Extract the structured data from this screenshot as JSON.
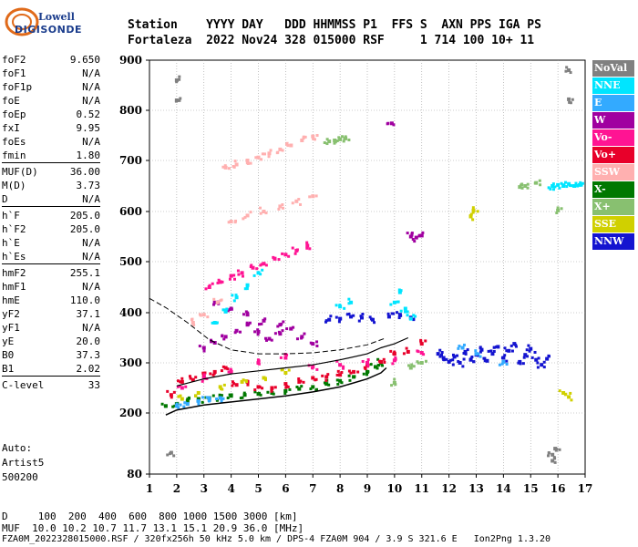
{
  "header": {
    "logo_top": "Lowell",
    "logo_bottom": "DIGISONDE",
    "line1": "Station    YYYY DAY   DDD HHMMSS P1  FFS S  AXN PPS IGA PS",
    "line2": "Fortaleza  2022 Nov24 328 015000 RSF     1 714 100 10+ 11"
  },
  "params_group1": [
    {
      "name": "foF2",
      "value": "9.650"
    },
    {
      "name": "foF1",
      "value": "N/A"
    },
    {
      "name": "foF1p",
      "value": "N/A"
    },
    {
      "name": "foE",
      "value": "N/A"
    },
    {
      "name": "foEp",
      "value": "0.52"
    },
    {
      "name": "fxI",
      "value": "9.95"
    },
    {
      "name": "foEs",
      "value": "N/A"
    },
    {
      "name": "fmin",
      "value": "1.80"
    }
  ],
  "params_group2": [
    {
      "name": "MUF(D)",
      "value": "36.00"
    },
    {
      "name": "M(D)",
      "value": "3.73"
    },
    {
      "name": "D",
      "value": "N/A"
    }
  ],
  "params_group3": [
    {
      "name": "h`F",
      "value": "205.0"
    },
    {
      "name": "h`F2",
      "value": "205.0"
    },
    {
      "name": "h`E",
      "value": "N/A"
    },
    {
      "name": "h`Es",
      "value": "N/A"
    }
  ],
  "params_group4": [
    {
      "name": "hmF2",
      "value": "255.1"
    },
    {
      "name": "hmF1",
      "value": "N/A"
    },
    {
      "name": "hmE",
      "value": "110.0"
    },
    {
      "name": "yF2",
      "value": "37.1"
    },
    {
      "name": "yF1",
      "value": "N/A"
    },
    {
      "name": "yE",
      "value": "20.0"
    },
    {
      "name": "B0",
      "value": "37.3"
    },
    {
      "name": "B1",
      "value": "2.02"
    }
  ],
  "params_group5": [
    {
      "name": "C-level",
      "value": "33"
    }
  ],
  "auto": {
    "line1": "Auto:",
    "line2": "Artist5",
    "line3": "500200"
  },
  "legend": [
    {
      "label": "NoVal",
      "color": "#808080"
    },
    {
      "label": "NNE",
      "color": "#00e5ff"
    },
    {
      "label": "E",
      "color": "#33aaff"
    },
    {
      "label": "W",
      "color": "#a000a0"
    },
    {
      "label": "Vo-",
      "color": "#ff1493"
    },
    {
      "label": "Vo+",
      "color": "#e8002a"
    },
    {
      "label": "SSW",
      "color": "#ffb0b0"
    },
    {
      "label": "X-",
      "color": "#007800"
    },
    {
      "label": "X+",
      "color": "#88c070"
    },
    {
      "label": "SSE",
      "color": "#d0d000"
    },
    {
      "label": "NNW",
      "color": "#1414d0"
    }
  ],
  "footer": {
    "line1": "D     100  200  400  600  800 1000 1500 3000 [km]",
    "line2": "MUF  10.0 10.2 10.7 11.7 13.1 15.1 20.9 36.0 [MHz]",
    "line3": "FZA0M_2022328015000.RSF / 320fx256h 50 kHz 5.0 km / DPS-4 FZA0M 904 / 3.9 S 321.6 E   Ion2Png 1.3.20"
  },
  "chart_data": {
    "type": "scatter",
    "title": "",
    "xlabel": "",
    "ylabel": "",
    "xlim": [
      1,
      17
    ],
    "ylim": [
      80,
      900
    ],
    "x_ticks": [
      "1",
      "2",
      "3",
      "4",
      "5",
      "6",
      "7",
      "8",
      "9",
      "10",
      "11",
      "12",
      "13",
      "14",
      "15",
      "16",
      "17"
    ],
    "y_ticks": [
      "80",
      "200",
      "300",
      "400",
      "500",
      "600",
      "700",
      "800",
      "900"
    ],
    "y_tick_values": [
      80,
      200,
      300,
      400,
      500,
      600,
      700,
      800,
      900
    ],
    "grid": true,
    "series": [
      {
        "name": "X-",
        "color": "#007800",
        "points": [
          [
            1.6,
            214
          ],
          [
            2.0,
            218
          ],
          [
            2.4,
            224
          ],
          [
            2.8,
            228
          ],
          [
            3.2,
            230
          ],
          [
            3.6,
            232
          ],
          [
            4.0,
            234
          ],
          [
            4.5,
            236
          ],
          [
            5.0,
            238
          ],
          [
            5.5,
            240
          ],
          [
            6.0,
            244
          ],
          [
            6.5,
            248
          ],
          [
            7.0,
            252
          ],
          [
            7.5,
            258
          ],
          [
            8.0,
            264
          ],
          [
            8.5,
            272
          ],
          [
            9.0,
            282
          ],
          [
            9.3,
            292
          ],
          [
            9.5,
            300
          ]
        ]
      },
      {
        "name": "Vo+",
        "color": "#e8002a",
        "points": [
          [
            1.8,
            236
          ],
          [
            2.2,
            262
          ],
          [
            2.6,
            266
          ],
          [
            3.0,
            274
          ],
          [
            3.4,
            282
          ],
          [
            3.8,
            290
          ],
          [
            4.2,
            256
          ],
          [
            4.6,
            262
          ],
          [
            5.0,
            252
          ],
          [
            5.5,
            250
          ],
          [
            6.0,
            258
          ],
          [
            6.5,
            262
          ],
          [
            7.0,
            270
          ],
          [
            7.5,
            272
          ],
          [
            8.0,
            276
          ],
          [
            8.5,
            282
          ],
          [
            9.0,
            294
          ],
          [
            9.5,
            302
          ],
          [
            10.0,
            318
          ],
          [
            10.5,
            322
          ],
          [
            11.0,
            338
          ]
        ]
      },
      {
        "name": "Vo-",
        "color": "#ff1493",
        "points": [
          [
            3.2,
            450
          ],
          [
            3.6,
            460
          ],
          [
            4.0,
            472
          ],
          [
            4.4,
            478
          ],
          [
            4.8,
            488
          ],
          [
            5.2,
            496
          ],
          [
            5.6,
            506
          ],
          [
            6.0,
            514
          ],
          [
            6.4,
            522
          ],
          [
            6.8,
            532
          ],
          [
            2.2,
            250
          ],
          [
            3.0,
            270
          ],
          [
            4.0,
            282
          ],
          [
            5.0,
            300
          ],
          [
            6.0,
            310
          ],
          [
            7.0,
            292
          ],
          [
            8.0,
            296
          ],
          [
            9.0,
            300
          ],
          [
            10.0,
            305
          ],
          [
            11.0,
            320
          ]
        ]
      },
      {
        "name": "W",
        "color": "#a000a0",
        "points": [
          [
            3.0,
            330
          ],
          [
            3.4,
            340
          ],
          [
            3.8,
            352
          ],
          [
            4.2,
            364
          ],
          [
            4.6,
            376
          ],
          [
            5.0,
            362
          ],
          [
            5.4,
            348
          ],
          [
            5.8,
            358
          ],
          [
            6.2,
            368
          ],
          [
            6.6,
            352
          ],
          [
            7.0,
            338
          ],
          [
            3.4,
            420
          ],
          [
            4.0,
            408
          ],
          [
            4.6,
            396
          ],
          [
            5.2,
            384
          ],
          [
            5.8,
            376
          ],
          [
            10.6,
            550
          ],
          [
            10.8,
            548
          ],
          [
            11.0,
            552
          ],
          [
            9.9,
            774
          ]
        ]
      },
      {
        "name": "NNW",
        "color": "#1414d0",
        "points": [
          [
            11.6,
            318
          ],
          [
            11.8,
            310
          ],
          [
            12.0,
            302
          ],
          [
            12.2,
            312
          ],
          [
            12.4,
            300
          ],
          [
            12.6,
            322
          ],
          [
            12.8,
            306
          ],
          [
            13.0,
            316
          ],
          [
            13.2,
            326
          ],
          [
            13.4,
            304
          ],
          [
            13.6,
            318
          ],
          [
            13.8,
            332
          ],
          [
            14.0,
            310
          ],
          [
            14.2,
            324
          ],
          [
            14.4,
            338
          ],
          [
            14.6,
            302
          ],
          [
            14.8,
            316
          ],
          [
            15.0,
            328
          ],
          [
            15.2,
            306
          ],
          [
            15.4,
            296
          ],
          [
            15.6,
            308
          ],
          [
            7.6,
            386
          ],
          [
            8.0,
            388
          ],
          [
            8.4,
            392
          ],
          [
            8.8,
            390
          ],
          [
            9.2,
            386
          ],
          [
            9.8,
            392
          ],
          [
            10.2,
            396
          ],
          [
            10.6,
            390
          ]
        ]
      },
      {
        "name": "NNE",
        "color": "#00e5ff",
        "points": [
          [
            15.8,
            650
          ],
          [
            16.0,
            652
          ],
          [
            16.2,
            650
          ],
          [
            16.4,
            654
          ],
          [
            16.6,
            650
          ],
          [
            16.8,
            652
          ],
          [
            10.0,
            420
          ],
          [
            10.2,
            440
          ],
          [
            10.4,
            408
          ],
          [
            10.6,
            388
          ],
          [
            8.0,
            412
          ],
          [
            8.4,
            420
          ],
          [
            3.4,
            380
          ],
          [
            3.8,
            402
          ],
          [
            4.2,
            430
          ],
          [
            4.6,
            454
          ],
          [
            5.0,
            478
          ]
        ]
      },
      {
        "name": "E",
        "color": "#33aaff",
        "points": [
          [
            2.0,
            214
          ],
          [
            2.4,
            218
          ],
          [
            2.8,
            224
          ],
          [
            3.2,
            226
          ],
          [
            3.6,
            230
          ],
          [
            12.5,
            330
          ],
          [
            13.0,
            318
          ],
          [
            14.0,
            302
          ]
        ]
      },
      {
        "name": "SSW",
        "color": "#ffb0b0",
        "points": [
          [
            3.8,
            686
          ],
          [
            4.2,
            692
          ],
          [
            4.6,
            700
          ],
          [
            5.0,
            706
          ],
          [
            5.4,
            714
          ],
          [
            5.8,
            722
          ],
          [
            6.2,
            730
          ],
          [
            6.6,
            740
          ],
          [
            7.0,
            748
          ],
          [
            4.0,
            580
          ],
          [
            4.6,
            592
          ],
          [
            5.2,
            600
          ],
          [
            5.8,
            610
          ],
          [
            6.4,
            620
          ],
          [
            7.0,
            630
          ],
          [
            2.6,
            380
          ],
          [
            3.0,
            396
          ],
          [
            3.5,
            420
          ]
        ]
      },
      {
        "name": "X+",
        "color": "#88c070",
        "points": [
          [
            7.6,
            738
          ],
          [
            7.8,
            740
          ],
          [
            8.0,
            742
          ],
          [
            8.2,
            744
          ],
          [
            14.6,
            648
          ],
          [
            14.8,
            650
          ],
          [
            15.2,
            656
          ],
          [
            16.0,
            602
          ],
          [
            10.0,
            260
          ],
          [
            10.6,
            290
          ],
          [
            11.0,
            300
          ]
        ]
      },
      {
        "name": "SSE",
        "color": "#d0d000",
        "points": [
          [
            2.2,
            228
          ],
          [
            2.8,
            240
          ],
          [
            3.6,
            252
          ],
          [
            4.4,
            262
          ],
          [
            5.2,
            270
          ],
          [
            6.0,
            280
          ],
          [
            16.2,
            240
          ],
          [
            16.4,
            232
          ],
          [
            12.8,
            590
          ],
          [
            12.9,
            602
          ]
        ]
      },
      {
        "name": "NoVal",
        "color": "#808080",
        "points": [
          [
            2.0,
            860
          ],
          [
            2.0,
            820
          ],
          [
            1.8,
            122
          ],
          [
            15.8,
            106
          ],
          [
            15.8,
            118
          ],
          [
            15.9,
            130
          ],
          [
            16.4,
            822
          ],
          [
            16.4,
            880
          ]
        ]
      }
    ],
    "fitted_curves": {
      "virtual_height_trace": [
        [
          1.6,
          196
        ],
        [
          2.0,
          206
        ],
        [
          3.0,
          216
        ],
        [
          4.0,
          222
        ],
        [
          5.0,
          228
        ],
        [
          6.0,
          234
        ],
        [
          7.0,
          242
        ],
        [
          8.0,
          252
        ],
        [
          9.0,
          268
        ],
        [
          9.5,
          280
        ],
        [
          9.7,
          290
        ]
      ],
      "estimated_profile": [
        [
          1.0,
          428
        ],
        [
          1.6,
          410
        ],
        [
          2.4,
          380
        ],
        [
          3.2,
          346
        ],
        [
          4.0,
          326
        ],
        [
          5.0,
          318
        ],
        [
          6.0,
          318
        ],
        [
          7.0,
          320
        ],
        [
          8.0,
          326
        ],
        [
          9.0,
          336
        ],
        [
          9.7,
          350
        ]
      ],
      "x_trace": [
        [
          2.0,
          254
        ],
        [
          3.0,
          268
        ],
        [
          4.0,
          278
        ],
        [
          5.0,
          284
        ],
        [
          6.0,
          290
        ],
        [
          7.0,
          296
        ],
        [
          8.0,
          306
        ],
        [
          9.0,
          318
        ],
        [
          9.5,
          330
        ],
        [
          10.0,
          338
        ],
        [
          10.5,
          350
        ]
      ]
    }
  }
}
